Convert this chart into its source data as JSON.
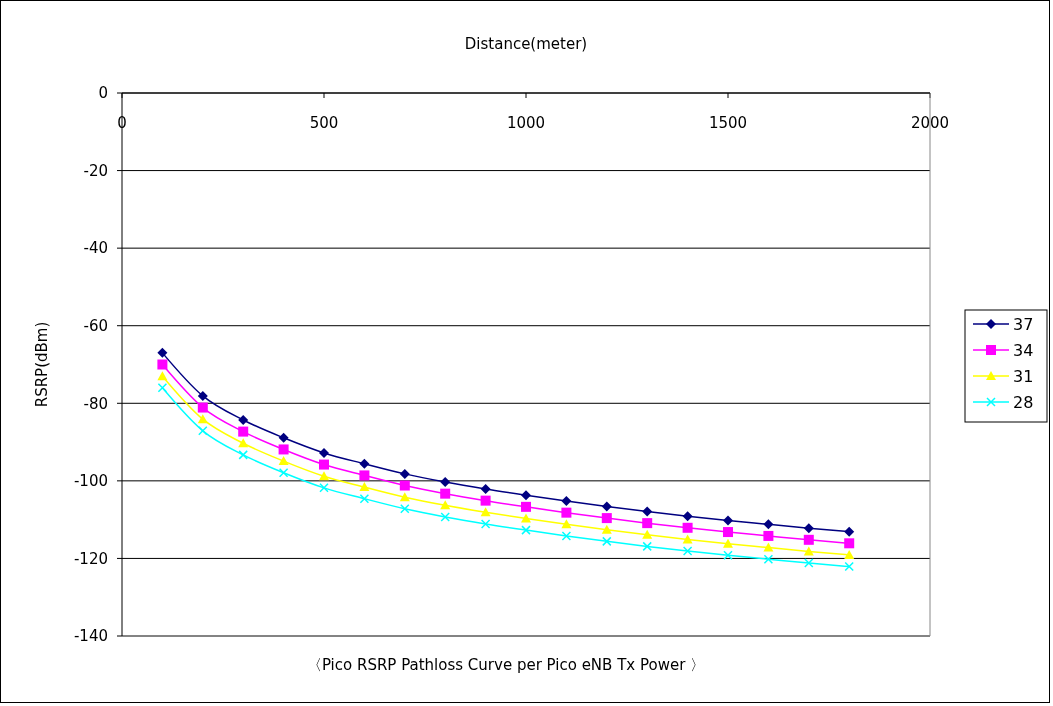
{
  "chart_data": {
    "type": "line",
    "title": "〈Pico RSRP Pathloss Curve per Pico eNB Tx Power 〉",
    "xlabel": "Distance(meter)",
    "ylabel": "RSRP(dBm)",
    "x": [
      100,
      200,
      300,
      400,
      500,
      600,
      700,
      800,
      900,
      1000,
      1100,
      1200,
      1300,
      1400,
      1500,
      1600,
      1700,
      1800
    ],
    "series": [
      {
        "name": "37",
        "color": "#000080",
        "marker": "diamond",
        "values": [
          -67.0,
          -78.1,
          -84.3,
          -88.9,
          -92.8,
          -95.6,
          -98.2,
          -100.3,
          -102.1,
          -103.7,
          -105.2,
          -106.6,
          -107.9,
          -109.1,
          -110.2,
          -111.2,
          -112.2,
          -113.1
        ]
      },
      {
        "name": "34",
        "color": "#ff00ff",
        "marker": "square",
        "values": [
          -70.0,
          -81.1,
          -87.3,
          -91.9,
          -95.8,
          -98.6,
          -101.2,
          -103.3,
          -105.1,
          -106.7,
          -108.2,
          -109.6,
          -110.9,
          -112.1,
          -113.2,
          -114.2,
          -115.2,
          -116.1
        ]
      },
      {
        "name": "31",
        "color": "#ffff00",
        "marker": "triangle",
        "values": [
          -73.0,
          -84.1,
          -90.3,
          -94.9,
          -98.8,
          -101.6,
          -104.2,
          -106.3,
          -108.1,
          -109.7,
          -111.2,
          -112.6,
          -113.9,
          -115.1,
          -116.2,
          -117.2,
          -118.2,
          -119.1
        ]
      },
      {
        "name": "28",
        "color": "#00ffff",
        "marker": "cross",
        "values": [
          -76.0,
          -87.1,
          -93.3,
          -97.9,
          -101.8,
          -104.6,
          -107.2,
          -109.3,
          -111.1,
          -112.7,
          -114.2,
          -115.6,
          -116.9,
          -118.1,
          -119.2,
          -120.2,
          -121.2,
          -122.1
        ]
      }
    ],
    "xlim": [
      0,
      2000
    ],
    "xticks": [
      0,
      500,
      1000,
      1500,
      2000
    ],
    "ylim": [
      -140,
      0
    ],
    "yticks": [
      -140,
      -120,
      -100,
      -80,
      -60,
      -40,
      -20,
      0
    ],
    "grid": "y",
    "legend": "right",
    "line_style": "solid"
  }
}
